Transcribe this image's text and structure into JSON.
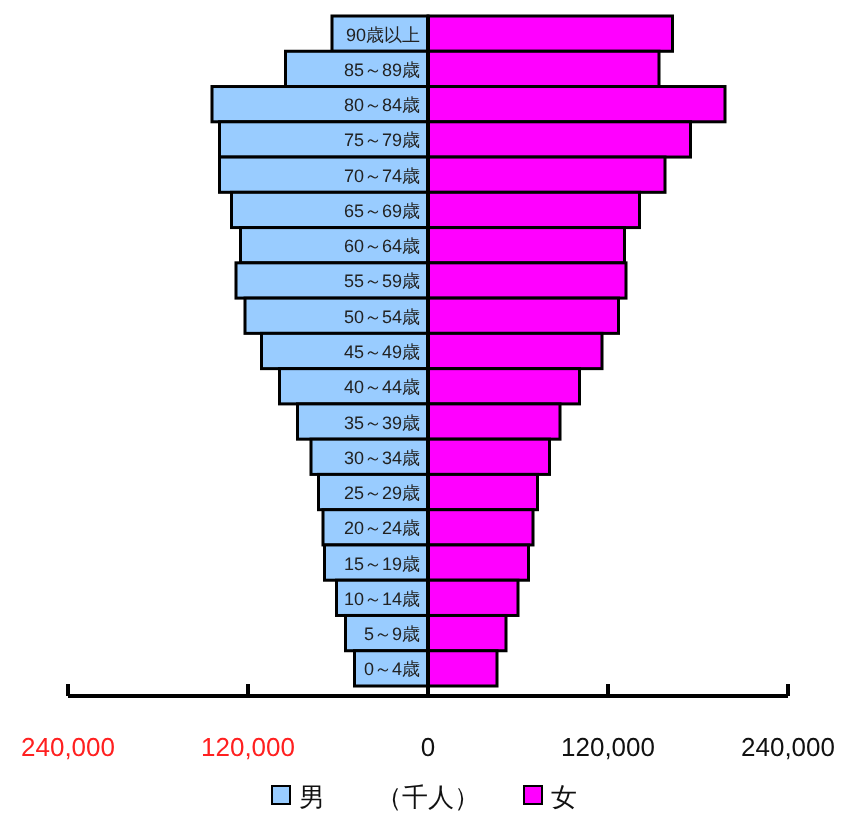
{
  "chart_data": {
    "type": "bar",
    "orientation": "horizontal",
    "xlabel": "（千人）",
    "categories": [
      "90歳以上",
      "85～89歳",
      "80～84歳",
      "75～79歳",
      "70～74歳",
      "65～69歳",
      "60～64歳",
      "55～59歳",
      "50～54歳",
      "45～49歳",
      "40～44歳",
      "35～39歳",
      "30～34歳",
      "25～29歳",
      "20～24歳",
      "15～19歳",
      "10～14歳",
      "5～9歳",
      "0～4歳"
    ],
    "series": [
      {
        "name": "男",
        "color": "#99ccff",
        "values": [
          -64000,
          -95000,
          -144000,
          -139000,
          -139000,
          -131000,
          -125000,
          -128000,
          -122000,
          -111000,
          -99000,
          -87000,
          -78000,
          -73000,
          -70000,
          -69000,
          -61000,
          -55000,
          -49000
        ]
      },
      {
        "name": "女",
        "color": "#ff00ff",
        "values": [
          163000,
          154000,
          198000,
          175000,
          158000,
          141000,
          131000,
          132000,
          127000,
          116000,
          101000,
          88000,
          81000,
          73000,
          70000,
          67000,
          60000,
          52000,
          46000
        ]
      }
    ],
    "xlim": [
      -240000,
      240000
    ],
    "xticks": [
      {
        "value": -240000,
        "label": "240,000"
      },
      {
        "value": -120000,
        "label": "120,000"
      },
      {
        "value": 0,
        "label": "0"
      },
      {
        "value": 120000,
        "label": "120,000"
      },
      {
        "value": 240000,
        "label": "240,000"
      }
    ],
    "stacked": true,
    "legend": "bottom",
    "grid": false
  }
}
